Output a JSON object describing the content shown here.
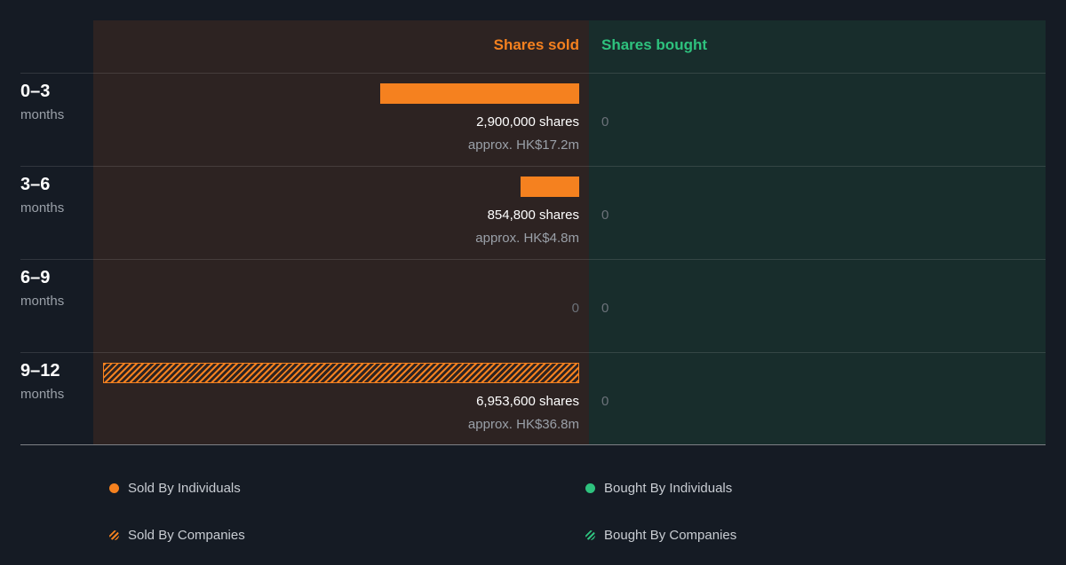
{
  "header": {
    "sold_label": "Shares sold",
    "bought_label": "Shares bought"
  },
  "colors": {
    "sold": "#f5811f",
    "bought": "#2ec27e",
    "sold_panel": "#2d2322",
    "bought_panel": "#182d2c",
    "background": "#151b24"
  },
  "rows": [
    {
      "range": "0–3",
      "unit": "months",
      "sold_shares": "2,900,000 shares",
      "sold_value": "approx. HK$17.2m",
      "bought": "0"
    },
    {
      "range": "3–6",
      "unit": "months",
      "sold_shares": "854,800 shares",
      "sold_value": "approx. HK$4.8m",
      "bought": "0"
    },
    {
      "range": "6–9",
      "unit": "months",
      "sold_zero": "0",
      "bought": "0"
    },
    {
      "range": "9–12",
      "unit": "months",
      "sold_shares": "6,953,600 shares",
      "sold_value": "approx. HK$36.8m",
      "bought": "0"
    }
  ],
  "legend": {
    "sold_individuals": "Sold By Individuals",
    "sold_companies": "Sold By Companies",
    "bought_individuals": "Bought By Individuals",
    "bought_companies": "Bought By Companies"
  },
  "chart_data": {
    "type": "bar",
    "categories": [
      "0–3 months",
      "3–6 months",
      "6–9 months",
      "9–12 months"
    ],
    "series": [
      {
        "name": "Sold By Individuals",
        "values": [
          2900000,
          854800,
          0,
          0
        ]
      },
      {
        "name": "Sold By Companies",
        "values": [
          0,
          0,
          0,
          6953600
        ]
      },
      {
        "name": "Bought By Individuals",
        "values": [
          0,
          0,
          0,
          0
        ]
      },
      {
        "name": "Bought By Companies",
        "values": [
          0,
          0,
          0,
          0
        ]
      }
    ],
    "sold_value_labels": [
      "approx. HK$17.2m",
      "approx. HK$4.8m",
      "",
      "approx. HK$36.8m"
    ],
    "legend_position": "bottom",
    "grid": false
  }
}
